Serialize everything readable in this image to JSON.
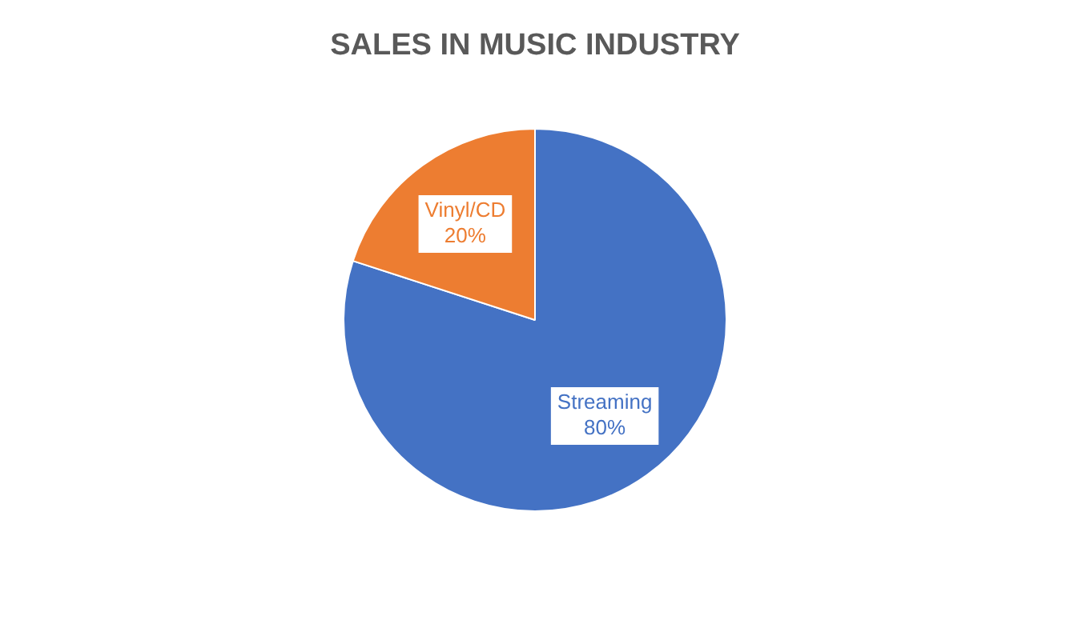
{
  "chart_data": {
    "type": "pie",
    "title": "SALES IN MUSIC INDUSTRY",
    "categories": [
      "Streaming",
      "Vinyl/CD"
    ],
    "values": [
      80,
      20
    ],
    "colors": [
      "#4472c4",
      "#ed7d31"
    ],
    "value_labels": [
      "80%",
      "20%"
    ],
    "legend": false
  }
}
